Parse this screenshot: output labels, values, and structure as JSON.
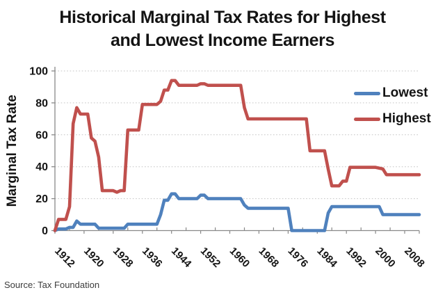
{
  "page": {
    "source_note": "Source: Tax Foundation"
  },
  "chart_data": {
    "type": "line",
    "title": "Historical Marginal Tax Rates for Highest and Lowest Income Earners",
    "title_lines": [
      "Historical Marginal Tax Rates for Highest",
      "and Lowest Income Earners"
    ],
    "xlabel": "",
    "ylabel": "Marginal Tax Rate",
    "x_range": [
      1912,
      2012
    ],
    "y_range": [
      0,
      100
    ],
    "y_ticks": [
      0,
      20,
      40,
      60,
      80,
      100
    ],
    "x_tick_labels": [
      "1912",
      "1920",
      "1928",
      "1936",
      "1944",
      "1952",
      "1960",
      "1968",
      "1976",
      "1984",
      "1992",
      "2000",
      "2008"
    ],
    "x_label_step_years": 8,
    "x_minor_tick_step_years": 4,
    "grid": "horizontal-dotted",
    "legend_position": "inside-top-right",
    "colors": {
      "lowest": "#4F81BD",
      "highest": "#C0504D",
      "gridline": "#c6c6c6",
      "axis": "#898989"
    },
    "series": [
      {
        "name": "Lowest",
        "color": "#4F81BD",
        "points": [
          [
            1912,
            0
          ],
          [
            1913,
            1
          ],
          [
            1915,
            1
          ],
          [
            1916,
            2
          ],
          [
            1917,
            2
          ],
          [
            1918,
            6
          ],
          [
            1919,
            4
          ],
          [
            1923,
            4
          ],
          [
            1924,
            1.5
          ],
          [
            1931,
            1.5
          ],
          [
            1932,
            4
          ],
          [
            1940,
            4
          ],
          [
            1941,
            10
          ],
          [
            1942,
            19
          ],
          [
            1943,
            19
          ],
          [
            1944,
            23
          ],
          [
            1945,
            23
          ],
          [
            1946,
            20
          ],
          [
            1951,
            20
          ],
          [
            1952,
            22.2
          ],
          [
            1953,
            22.2
          ],
          [
            1954,
            20
          ],
          [
            1963,
            20
          ],
          [
            1964,
            16
          ],
          [
            1965,
            14
          ],
          [
            1976,
            14
          ],
          [
            1977,
            0
          ],
          [
            1986,
            0
          ],
          [
            1987,
            11
          ],
          [
            1988,
            15
          ],
          [
            2000,
            15
          ],
          [
            2001,
            15
          ],
          [
            2002,
            10
          ],
          [
            2012,
            10
          ]
        ]
      },
      {
        "name": "Highest",
        "color": "#C0504D",
        "points": [
          [
            1912,
            0
          ],
          [
            1913,
            7
          ],
          [
            1915,
            7
          ],
          [
            1916,
            15
          ],
          [
            1917,
            67
          ],
          [
            1918,
            77
          ],
          [
            1919,
            73
          ],
          [
            1921,
            73
          ],
          [
            1922,
            58
          ],
          [
            1923,
            56
          ],
          [
            1924,
            46
          ],
          [
            1925,
            25
          ],
          [
            1928,
            25
          ],
          [
            1929,
            24
          ],
          [
            1930,
            25
          ],
          [
            1931,
            25
          ],
          [
            1932,
            63
          ],
          [
            1935,
            63
          ],
          [
            1936,
            79
          ],
          [
            1940,
            79
          ],
          [
            1941,
            81
          ],
          [
            1942,
            88
          ],
          [
            1943,
            88
          ],
          [
            1944,
            94
          ],
          [
            1945,
            94
          ],
          [
            1946,
            91
          ],
          [
            1951,
            91
          ],
          [
            1952,
            92
          ],
          [
            1953,
            92
          ],
          [
            1954,
            91
          ],
          [
            1963,
            91
          ],
          [
            1964,
            77
          ],
          [
            1965,
            70
          ],
          [
            1981,
            70
          ],
          [
            1982,
            50
          ],
          [
            1986,
            50
          ],
          [
            1987,
            38.5
          ],
          [
            1988,
            28
          ],
          [
            1990,
            28
          ],
          [
            1991,
            31
          ],
          [
            1992,
            31
          ],
          [
            1993,
            39.6
          ],
          [
            2000,
            39.6
          ],
          [
            2001,
            39.1
          ],
          [
            2002,
            38.6
          ],
          [
            2003,
            35
          ],
          [
            2012,
            35
          ]
        ]
      }
    ]
  }
}
